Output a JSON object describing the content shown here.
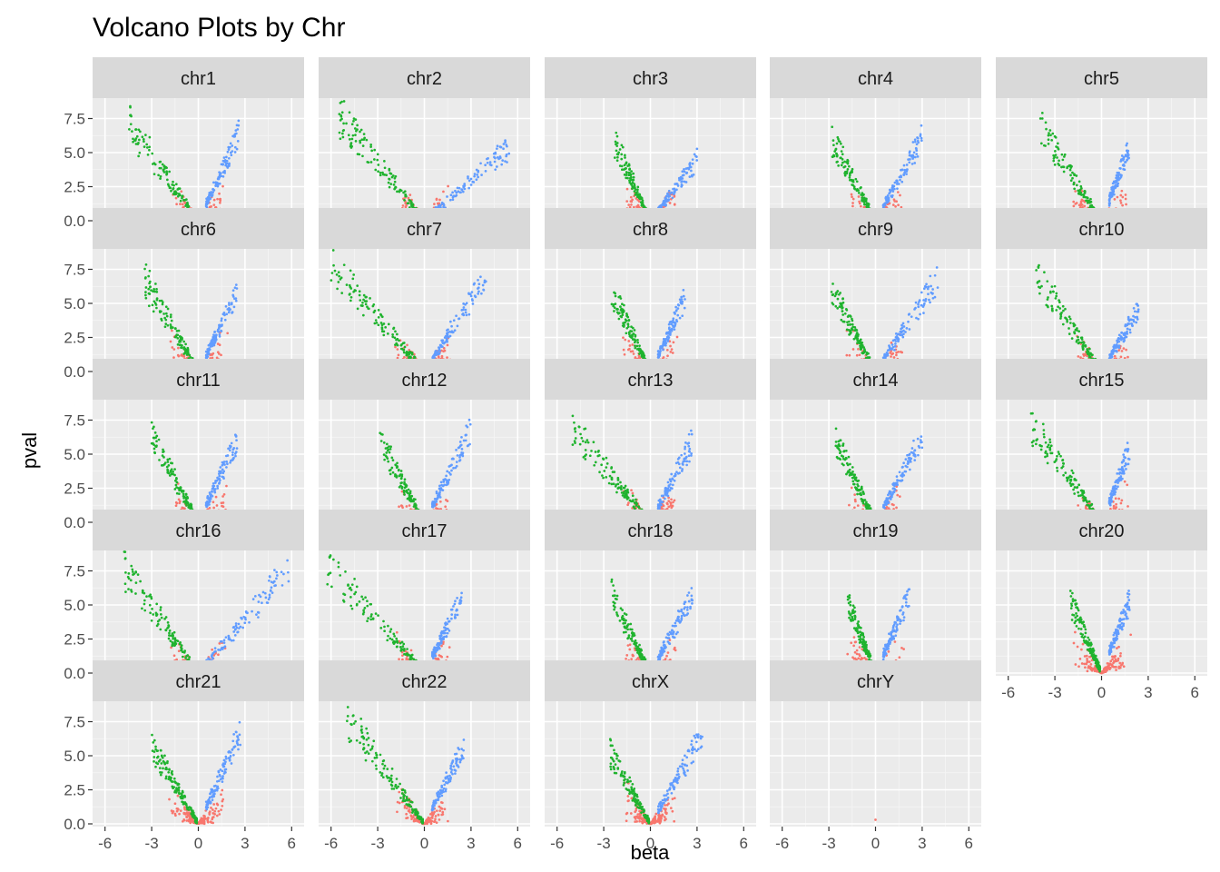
{
  "chart_data": {
    "type": "scatter",
    "title": "Volcano Plots by Chr",
    "xlabel": "beta",
    "ylabel": "pval",
    "xlim": [
      -6.8,
      6.8
    ],
    "ylim": [
      -0.2,
      9.0
    ],
    "x_ticks": [
      -6,
      -3,
      0,
      3,
      6
    ],
    "x_tick_labels": [
      "-6",
      "-3",
      "0",
      "3",
      "6"
    ],
    "y_ticks": [
      0,
      2.5,
      5,
      7.5
    ],
    "y_tick_labels": [
      "0.0",
      "2.5",
      "5.0",
      "7.5"
    ],
    "grid": true,
    "facet_by": "chr",
    "facets": [
      "chr1",
      "chr2",
      "chr3",
      "chr4",
      "chr5",
      "chr6",
      "chr7",
      "chr8",
      "chr9",
      "chr10",
      "chr11",
      "chr12",
      "chr13",
      "chr14",
      "chr15",
      "chr16",
      "chr17",
      "chr18",
      "chr19",
      "chr20",
      "chr21",
      "chr22",
      "chrX",
      "chrY"
    ],
    "colors": {
      "nonsignificant": "#f8766d",
      "negative": "#1fb32e",
      "positive": "#619cff",
      "panel_background": "#ebebeb",
      "strip_background": "#d9d9d9"
    },
    "panel_ranges": {
      "chr1": {
        "neg_min": -4.6,
        "neg_top": 8.4,
        "pos_max": 2.6,
        "pos_top": 7.0
      },
      "chr2": {
        "neg_min": -5.6,
        "neg_top": 9.0,
        "pos_max": 5.5,
        "pos_top": 6.1
      },
      "chr3": {
        "neg_min": -2.3,
        "neg_top": 6.6,
        "pos_max": 3.0,
        "pos_top": 5.0
      },
      "chr4": {
        "neg_min": -2.8,
        "neg_top": 6.8,
        "pos_max": 3.0,
        "pos_top": 6.8
      },
      "chr5": {
        "neg_min": -4.0,
        "neg_top": 8.1,
        "pos_max": 1.8,
        "pos_top": 6.0
      },
      "chr6": {
        "neg_min": -3.5,
        "neg_top": 7.8,
        "pos_max": 2.5,
        "pos_top": 6.4
      },
      "chr7": {
        "neg_min": -6.0,
        "neg_top": 9.0,
        "pos_max": 4.0,
        "pos_top": 8.0
      },
      "chr8": {
        "neg_min": -2.5,
        "neg_top": 6.8,
        "pos_max": 2.3,
        "pos_top": 6.2
      },
      "chr9": {
        "neg_min": -2.9,
        "neg_top": 7.0,
        "pos_max": 4.0,
        "pos_top": 7.6
      },
      "chr10": {
        "neg_min": -4.2,
        "neg_top": 8.1,
        "pos_max": 2.4,
        "pos_top": 5.2
      },
      "chr11": {
        "neg_min": -3.0,
        "neg_top": 7.2,
        "pos_max": 2.5,
        "pos_top": 6.8
      },
      "chr12": {
        "neg_min": -2.9,
        "neg_top": 7.0,
        "pos_max": 3.0,
        "pos_top": 7.6
      },
      "chr13": {
        "neg_min": -5.0,
        "neg_top": 7.8,
        "pos_max": 2.7,
        "pos_top": 6.6
      },
      "chr14": {
        "neg_min": -2.6,
        "neg_top": 6.9,
        "pos_max": 3.0,
        "pos_top": 7.0
      },
      "chr15": {
        "neg_min": -4.6,
        "neg_top": 8.4,
        "pos_max": 1.8,
        "pos_top": 6.0
      },
      "chr16": {
        "neg_min": -4.8,
        "neg_top": 8.8,
        "pos_max": 6.0,
        "pos_top": 8.8
      },
      "chr17": {
        "neg_min": -6.3,
        "neg_top": 9.0,
        "pos_max": 2.4,
        "pos_top": 6.3
      },
      "chr18": {
        "neg_min": -2.5,
        "neg_top": 6.6,
        "pos_max": 2.7,
        "pos_top": 6.4
      },
      "chr19": {
        "neg_min": -1.8,
        "neg_top": 6.0,
        "pos_max": 2.2,
        "pos_top": 6.5
      },
      "chr20": {
        "neg_min": -2.0,
        "neg_top": 6.0,
        "pos_max": 1.8,
        "pos_top": 5.9
      },
      "chr21": {
        "neg_min": -3.0,
        "neg_top": 6.6,
        "pos_max": 2.7,
        "pos_top": 7.4
      },
      "chr22": {
        "neg_min": -5.0,
        "neg_top": 9.0,
        "pos_max": 2.6,
        "pos_top": 6.4
      },
      "chrX": {
        "neg_min": -2.6,
        "neg_top": 6.0,
        "pos_max": 3.4,
        "pos_top": 7.4
      },
      "chrY": {
        "neg_min": 0,
        "neg_top": 0,
        "pos_max": 0,
        "pos_top": 0,
        "single_point": [
          0.0,
          0.3
        ]
      }
    }
  }
}
